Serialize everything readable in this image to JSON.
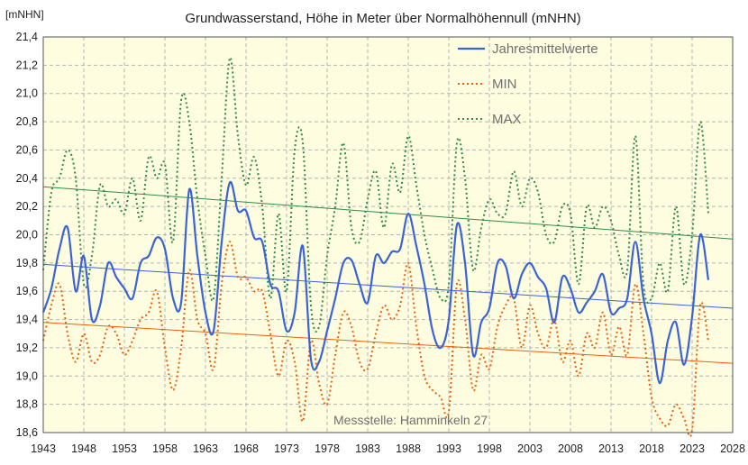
{
  "chart_data": {
    "type": "line",
    "title": "Grundwasserstand, Höhe in Meter über Normalhöhennull (mNHN)",
    "ylabel": "[mNHN]",
    "xlabel": "",
    "xlim": [
      1943,
      2028
    ],
    "ylim": [
      18.6,
      21.4
    ],
    "x_ticks": [
      1943,
      1948,
      1953,
      1958,
      1963,
      1968,
      1973,
      1978,
      1983,
      1988,
      1993,
      1998,
      2003,
      2008,
      2013,
      2018,
      2023,
      2028
    ],
    "x_tick_labels": [
      "1943",
      "1948",
      "1953",
      "1958",
      "1963",
      "1968",
      "1973",
      "1978",
      "1983",
      "1988",
      "1993",
      "1998",
      "2003",
      "2008",
      "2013",
      "2018",
      "2023",
      "2028"
    ],
    "y_ticks": [
      18.6,
      18.8,
      19.0,
      19.2,
      19.4,
      19.6,
      19.8,
      20.0,
      20.2,
      20.4,
      20.6,
      20.8,
      21.0,
      21.2,
      21.4
    ],
    "y_tick_labels": [
      "18,6",
      "18,8",
      "19,0",
      "19,2",
      "19,4",
      "19,6",
      "19,8",
      "20,0",
      "20,2",
      "20,4",
      "20,6",
      "20,8",
      "21,0",
      "21,2",
      "21,4"
    ],
    "grid": true,
    "legend_position": "top-right",
    "annotation": "Messstelle: Hamminkeln 27",
    "colors": {
      "plot_background": "#fffde0",
      "grid": "#b4b4b4",
      "mean": "#3a63d8",
      "min": "#e8620e",
      "max": "#2e8b4a"
    },
    "series": [
      {
        "name": "Jahresmittelwerte",
        "style": "solid",
        "color": "#3a63d8",
        "x": [
          1943,
          1944,
          1945,
          1946,
          1947,
          1948,
          1949,
          1950,
          1951,
          1952,
          1953,
          1954,
          1955,
          1956,
          1957,
          1958,
          1959,
          1960,
          1961,
          1962,
          1963,
          1964,
          1965,
          1966,
          1967,
          1968,
          1969,
          1970,
          1971,
          1972,
          1973,
          1974,
          1975,
          1976,
          1977,
          1978,
          1979,
          1980,
          1981,
          1982,
          1983,
          1984,
          1985,
          1986,
          1987,
          1988,
          1989,
          1990,
          1991,
          1992,
          1993,
          1994,
          1995,
          1996,
          1997,
          1998,
          1999,
          2000,
          2001,
          2002,
          2003,
          2004,
          2005,
          2006,
          2007,
          2008,
          2009,
          2010,
          2011,
          2012,
          2013,
          2014,
          2015,
          2016,
          2017,
          2018,
          2019,
          2020,
          2021,
          2022,
          2023,
          2024,
          2025
        ],
        "values": [
          19.45,
          19.62,
          19.9,
          20.05,
          19.6,
          19.85,
          19.4,
          19.5,
          19.8,
          19.7,
          19.62,
          19.55,
          19.8,
          19.85,
          19.98,
          19.9,
          19.55,
          19.52,
          20.32,
          19.85,
          19.45,
          19.32,
          19.95,
          20.37,
          20.17,
          20.17,
          19.98,
          19.95,
          19.65,
          19.6,
          19.32,
          19.45,
          19.92,
          19.12,
          19.1,
          19.32,
          19.55,
          19.8,
          19.82,
          19.65,
          19.52,
          19.85,
          19.8,
          19.88,
          19.9,
          20.15,
          19.92,
          19.65,
          19.32,
          19.2,
          19.4,
          20.07,
          19.8,
          19.15,
          19.38,
          19.48,
          19.8,
          19.78,
          19.55,
          19.72,
          19.8,
          19.7,
          19.62,
          19.38,
          19.7,
          19.62,
          19.45,
          19.52,
          19.6,
          19.72,
          19.45,
          19.48,
          19.55,
          19.95,
          19.55,
          19.3,
          18.95,
          19.25,
          19.38,
          19.08,
          19.42,
          20.0,
          19.68
        ]
      },
      {
        "name": "MIN",
        "style": "dotted",
        "color": "#e8620e",
        "x": [
          1943,
          1944,
          1945,
          1946,
          1947,
          1948,
          1949,
          1950,
          1951,
          1952,
          1953,
          1954,
          1955,
          1956,
          1957,
          1958,
          1959,
          1960,
          1961,
          1962,
          1963,
          1964,
          1965,
          1966,
          1967,
          1968,
          1969,
          1970,
          1971,
          1972,
          1973,
          1974,
          1975,
          1976,
          1977,
          1978,
          1979,
          1980,
          1981,
          1982,
          1983,
          1984,
          1985,
          1986,
          1987,
          1988,
          1989,
          1990,
          1991,
          1992,
          1993,
          1994,
          1995,
          1996,
          1997,
          1998,
          1999,
          2000,
          2001,
          2002,
          2003,
          2004,
          2005,
          2006,
          2007,
          2008,
          2009,
          2010,
          2011,
          2012,
          2013,
          2014,
          2015,
          2016,
          2017,
          2018,
          2019,
          2020,
          2021,
          2022,
          2023,
          2024,
          2025
        ],
        "values": [
          19.25,
          19.5,
          19.65,
          19.3,
          19.1,
          19.3,
          19.1,
          19.15,
          19.35,
          19.3,
          19.15,
          19.25,
          19.4,
          19.45,
          19.6,
          19.2,
          18.9,
          19.2,
          19.75,
          19.4,
          19.3,
          19.05,
          19.65,
          19.95,
          19.7,
          19.7,
          19.6,
          19.6,
          19.3,
          19.0,
          19.25,
          19.1,
          18.68,
          19.25,
          18.95,
          18.8,
          19.15,
          19.45,
          19.35,
          19.1,
          19.05,
          19.3,
          19.5,
          19.4,
          19.5,
          19.8,
          19.35,
          19.0,
          18.9,
          18.85,
          18.75,
          19.65,
          19.4,
          18.9,
          19.15,
          19.05,
          19.35,
          19.5,
          19.55,
          19.2,
          19.5,
          19.3,
          19.2,
          19.4,
          19.1,
          19.25,
          19.0,
          19.3,
          19.2,
          19.45,
          19.15,
          19.35,
          19.15,
          19.65,
          19.3,
          18.85,
          18.7,
          18.65,
          18.8,
          18.7,
          18.62,
          19.5,
          19.25
        ]
      },
      {
        "name": "MAX",
        "style": "dotted",
        "color": "#2e8b4a",
        "x": [
          1943,
          1944,
          1945,
          1946,
          1947,
          1948,
          1949,
          1950,
          1951,
          1952,
          1953,
          1954,
          1955,
          1956,
          1957,
          1958,
          1959,
          1960,
          1961,
          1962,
          1963,
          1964,
          1965,
          1966,
          1967,
          1968,
          1969,
          1970,
          1971,
          1972,
          1973,
          1974,
          1975,
          1976,
          1977,
          1978,
          1979,
          1980,
          1981,
          1982,
          1983,
          1984,
          1985,
          1986,
          1987,
          1988,
          1989,
          1990,
          1991,
          1992,
          1993,
          1994,
          1995,
          1996,
          1997,
          1998,
          1999,
          2000,
          2001,
          2002,
          2003,
          2004,
          2005,
          2006,
          2007,
          2008,
          2009,
          2010,
          2011,
          2012,
          2013,
          2014,
          2015,
          2016,
          2017,
          2018,
          2019,
          2020,
          2021,
          2022,
          2023,
          2024,
          2025
        ],
        "values": [
          19.75,
          20.3,
          20.4,
          20.6,
          20.4,
          19.65,
          19.85,
          20.35,
          20.2,
          20.25,
          20.15,
          20.4,
          20.1,
          20.55,
          20.4,
          20.5,
          19.95,
          20.95,
          20.8,
          20.25,
          19.85,
          19.55,
          20.4,
          21.25,
          20.7,
          20.35,
          20.55,
          20.2,
          19.55,
          20.15,
          19.6,
          20.6,
          20.65,
          19.5,
          19.35,
          19.85,
          20.2,
          20.65,
          20.05,
          19.95,
          20.25,
          20.45,
          20.05,
          20.5,
          20.3,
          20.7,
          20.35,
          20.0,
          19.75,
          19.55,
          19.65,
          20.65,
          20.4,
          19.75,
          20.05,
          20.25,
          20.15,
          20.15,
          20.45,
          20.2,
          20.4,
          20.3,
          20.0,
          19.95,
          20.2,
          20.15,
          19.65,
          20.2,
          20.05,
          20.2,
          20.1,
          19.85,
          19.75,
          20.7,
          19.65,
          19.55,
          19.8,
          19.6,
          20.2,
          19.65,
          20.0,
          20.8,
          20.15
        ]
      }
    ],
    "trendlines": [
      {
        "series": "Jahresmittelwerte",
        "x": [
          1943,
          2028
        ],
        "values": [
          19.79,
          19.48
        ]
      },
      {
        "series": "MIN",
        "x": [
          1943,
          2028
        ],
        "values": [
          19.38,
          19.09
        ]
      },
      {
        "series": "MAX",
        "x": [
          1943,
          2028
        ],
        "values": [
          20.34,
          19.97
        ]
      }
    ]
  }
}
